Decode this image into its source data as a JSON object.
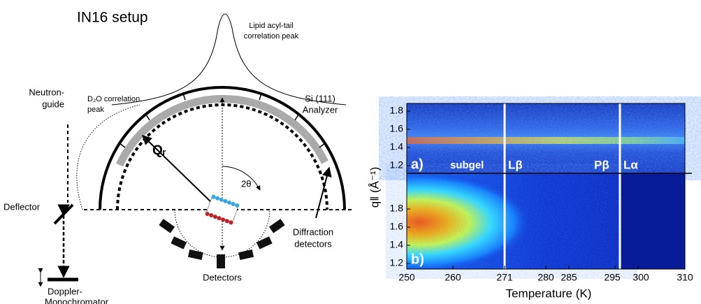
{
  "diagram": {
    "title": "IN16 setup",
    "lipid_peak": [
      "Lipid acyl-tail",
      "correlation peak"
    ],
    "d2o_peak": [
      "D₂O correlation",
      "peak"
    ],
    "analyzer": [
      "Si (111)",
      "Analyzer"
    ],
    "guide": [
      "Neutron-",
      "guide"
    ],
    "deflector": "Deflector",
    "monochromator": [
      "Doppler-",
      "Monochromator"
    ],
    "q_label": "Qᵣ",
    "angle_label": "2θ",
    "detectors": "Detectors",
    "diffraction": [
      "Diffraction",
      "detectors"
    ]
  },
  "plot": {
    "panel_a": "a)",
    "panel_b": "b)",
    "phases": [
      "subgel",
      "Lβ",
      "Pβ",
      "Lα"
    ],
    "x_ticks": [
      "250",
      "260",
      "271",
      "280",
      "285",
      "295",
      "300",
      "310"
    ],
    "top_y_ticks": [
      "1.2",
      "1.4",
      "1.6",
      "1.8"
    ],
    "bottom_y_ticks": [
      "1.2",
      "1.4",
      "1.6",
      "1.8"
    ],
    "x_label": "Temperature (K)",
    "y_label": "q‖ (Å⁻¹)"
  }
}
